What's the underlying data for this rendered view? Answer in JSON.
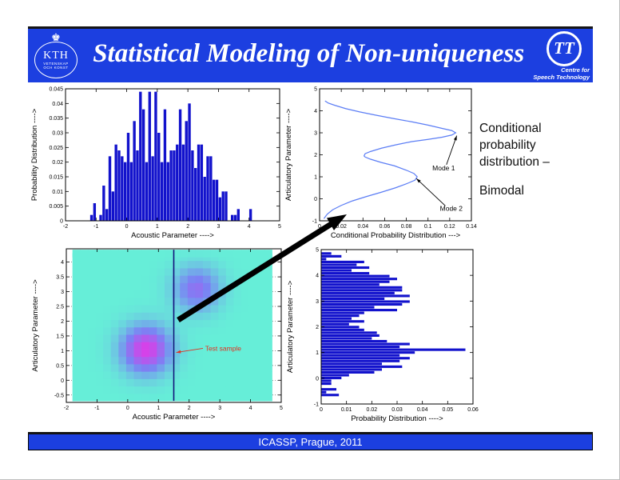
{
  "header": {
    "title": "Statistical Modeling of Non-uniqueness",
    "bg_color": "#1c3fe0",
    "kth": {
      "label": "KTH",
      "sub1": "VETENSKAP",
      "sub2": "OCH KONST"
    },
    "tt": {
      "label": "TT",
      "sub1": "Centre for",
      "sub2": "Speech Technology"
    }
  },
  "sidenote": {
    "para1": "Conditional probability distribution –",
    "para2": "Bimodal"
  },
  "footer": {
    "text": "ICASSP, Prague,  2011",
    "bg_color": "#1c3fe0"
  },
  "chart_data": [
    {
      "id": "acoustic-parameter-histogram",
      "type": "bar",
      "xlabel": "Acoustic Parameter ---->",
      "ylabel": "Probability Distribution ---->",
      "xlim": [
        -2,
        5
      ],
      "ylim": [
        0,
        0.045
      ],
      "xticks": [
        -2,
        -1,
        0,
        1,
        2,
        3,
        4,
        5
      ],
      "yticks": [
        0,
        0.005,
        0.01,
        0.015,
        0.02,
        0.025,
        0.03,
        0.035,
        0.04,
        0.045
      ],
      "bar_color": "#1212cc",
      "x0": -1.15,
      "dx": 0.1,
      "bar_width": 0.1,
      "values": [
        0.002,
        0.006,
        0,
        0.002,
        0.012,
        0.004,
        0.022,
        0.01,
        0.026,
        0.024,
        0.022,
        0.02,
        0.03,
        0.02,
        0.034,
        0.024,
        0.044,
        0.038,
        0.02,
        0.044,
        0.022,
        0.044,
        0.03,
        0.02,
        0.038,
        0.02,
        0.024,
        0.024,
        0.026,
        0.038,
        0.026,
        0.034,
        0.04,
        0.024,
        0.018,
        0.026,
        0.026,
        0.015,
        0.022,
        0.022,
        0.014,
        0.014,
        0.008,
        0.01,
        0.01,
        0,
        0.002,
        0.002,
        0.004,
        0,
        0,
        0,
        0.004,
        0
      ]
    },
    {
      "id": "conditional-probability-curve",
      "type": "line",
      "xlabel": "Conditional Probability Distribution --->",
      "ylabel": "Articulatory Parameter ---->",
      "xlim": [
        0,
        0.14
      ],
      "ylim": [
        -1,
        5
      ],
      "xticks": [
        0,
        0.02,
        0.04,
        0.06,
        0.08,
        0.1,
        0.12,
        0.14
      ],
      "yticks": [
        -1,
        0,
        1,
        2,
        3,
        4,
        5
      ],
      "line_color": "#5b7df5",
      "points": [
        [
          0.004,
          -0.9
        ],
        [
          0.007,
          -0.7
        ],
        [
          0.012,
          -0.5
        ],
        [
          0.02,
          -0.3
        ],
        [
          0.03,
          -0.1
        ],
        [
          0.043,
          0.1
        ],
        [
          0.057,
          0.3
        ],
        [
          0.07,
          0.5
        ],
        [
          0.081,
          0.7
        ],
        [
          0.088,
          0.85
        ],
        [
          0.09,
          1.0
        ],
        [
          0.087,
          1.15
        ],
        [
          0.08,
          1.3
        ],
        [
          0.069,
          1.5
        ],
        [
          0.057,
          1.65
        ],
        [
          0.047,
          1.8
        ],
        [
          0.042,
          1.9
        ],
        [
          0.041,
          1.95
        ],
        [
          0.042,
          2.05
        ],
        [
          0.047,
          2.15
        ],
        [
          0.057,
          2.3
        ],
        [
          0.07,
          2.45
        ],
        [
          0.085,
          2.6
        ],
        [
          0.1,
          2.7
        ],
        [
          0.113,
          2.8
        ],
        [
          0.122,
          2.9
        ],
        [
          0.1255,
          3.0
        ],
        [
          0.122,
          3.1
        ],
        [
          0.113,
          3.2
        ],
        [
          0.1,
          3.35
        ],
        [
          0.085,
          3.5
        ],
        [
          0.068,
          3.65
        ],
        [
          0.052,
          3.8
        ],
        [
          0.037,
          3.95
        ],
        [
          0.024,
          4.1
        ],
        [
          0.014,
          4.25
        ],
        [
          0.008,
          4.35
        ],
        [
          0.005,
          4.45
        ]
      ],
      "annotations": [
        {
          "label": "Mode 1",
          "color": "#000000",
          "text": [
            0.104,
            1.3
          ],
          "line": [
            [
              0.117,
              1.55
            ],
            [
              0.1265,
              2.87
            ]
          ]
        },
        {
          "label": "Mode 2",
          "color": "#000000",
          "text": [
            0.111,
            -0.55
          ],
          "line": [
            [
              0.116,
              -0.32
            ],
            [
              0.0893,
              0.92
            ]
          ]
        }
      ]
    },
    {
      "id": "joint-density-heatmap",
      "type": "heatmap",
      "xlabel": "Acoustic Parameter ---->",
      "ylabel": "Articulatory Parameter ---->",
      "xlim": [
        -2,
        5
      ],
      "ylim": [
        -0.75,
        4.45
      ],
      "xticks": [
        -2,
        -1,
        0,
        1,
        2,
        3,
        4,
        5
      ],
      "yticks": [
        -0.5,
        0,
        0.5,
        1,
        1.5,
        2,
        2.5,
        3,
        3.5,
        4
      ],
      "grid": true,
      "extent": [
        -1.8,
        4.65,
        -0.7,
        4.42
      ],
      "cell": 0.25,
      "gaussians": [
        {
          "cx": 0.6,
          "cy": 1.05,
          "sigma": 0.55,
          "amp": 1.0
        },
        {
          "cx": 2.25,
          "cy": 3.1,
          "sigma": 0.52,
          "amp": 0.62
        }
      ],
      "colormap": {
        "low": "#66eed8",
        "mid": "#7a82f4",
        "high": "#da3ee8"
      },
      "vline": {
        "x": 1.5,
        "color": "#13137a"
      },
      "annotations": [
        {
          "label": "Test sample",
          "color": "#e03222",
          "text": [
            2.52,
            1.0
          ],
          "line": [
            [
              2.45,
              1.08
            ],
            [
              1.58,
              0.94
            ]
          ]
        }
      ]
    },
    {
      "id": "articulatory-parameter-histogram",
      "type": "hbar",
      "xlabel": "Probability Distribution ---->",
      "ylabel": "Articulatory Parameter ---->",
      "xlim": [
        0,
        0.06
      ],
      "ylim": [
        -1,
        5
      ],
      "xticks": [
        0,
        0.01,
        0.02,
        0.03,
        0.04,
        0.05,
        0.06
      ],
      "yticks": [
        -1,
        0,
        1,
        2,
        3,
        4,
        5
      ],
      "bar_color": "#1212cc",
      "y0": -0.65,
      "dy": 0.11,
      "bar_height": 0.11,
      "values": [
        0.007,
        0.002,
        0.006,
        0,
        0.004,
        0.004,
        0.008,
        0.011,
        0.021,
        0.024,
        0.032,
        0.024,
        0.031,
        0.035,
        0.031,
        0.037,
        0.057,
        0.031,
        0.035,
        0.026,
        0.02,
        0.023,
        0.022,
        0.017,
        0.015,
        0.011,
        0.017,
        0.012,
        0.015,
        0.017,
        0.03,
        0.021,
        0.032,
        0.035,
        0.025,
        0.035,
        0.029,
        0.032,
        0.032,
        0.023,
        0.027,
        0.03,
        0.027,
        0.019,
        0.012,
        0.019,
        0.014,
        0.017,
        0.002,
        0.008,
        0.004
      ]
    }
  ]
}
